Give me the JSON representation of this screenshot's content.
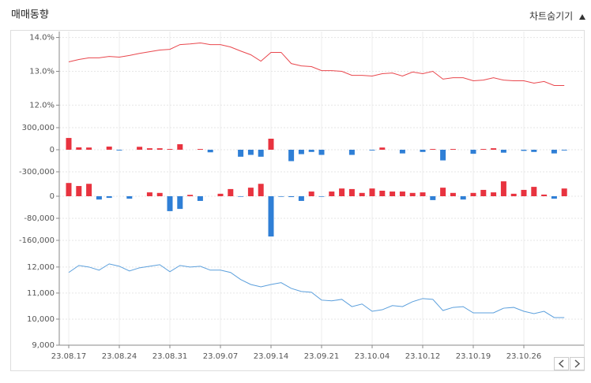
{
  "header": {
    "title": "매매동향",
    "toggle": "차트숨기기"
  },
  "chart_data": [
    {
      "type": "line",
      "color": "#e9474d",
      "values": [
        13.28,
        13.35,
        13.4,
        13.4,
        13.44,
        13.42,
        13.47,
        13.53,
        13.58,
        13.63,
        13.65,
        13.79,
        13.81,
        13.84,
        13.79,
        13.79,
        13.72,
        13.6,
        13.49,
        13.3,
        13.56,
        13.56,
        13.23,
        13.16,
        13.14,
        13.02,
        13.02,
        13.0,
        12.88,
        12.88,
        12.86,
        12.93,
        12.95,
        12.86,
        12.98,
        12.93,
        13.0,
        12.77,
        12.81,
        12.81,
        12.72,
        12.74,
        12.81,
        12.74,
        12.72,
        12.72,
        12.65,
        12.7,
        12.58,
        12.58
      ],
      "ylim": [
        11.8,
        14.2
      ],
      "yticks": [
        {
          "value": 14,
          "label": "14.0%"
        },
        {
          "value": 13,
          "label": "13.0%"
        },
        {
          "value": 12,
          "label": "12.0%"
        }
      ],
      "grid": true
    },
    {
      "type": "bar",
      "color": "#e8333f",
      "negative_color": "#2f7fd6",
      "values": [
        160000,
        32000,
        30000,
        0,
        43000,
        -10000,
        0,
        40000,
        20000,
        20000,
        10000,
        75000,
        0,
        10000,
        -35000,
        0,
        0,
        -95000,
        -70000,
        -95000,
        150000,
        0,
        -155000,
        -60000,
        -30000,
        -70000,
        0,
        0,
        -70000,
        0,
        -10000,
        30000,
        0,
        -50000,
        0,
        -30000,
        10000,
        -145000,
        10000,
        0,
        -55000,
        10000,
        20000,
        -40000,
        0,
        -15000,
        -30000,
        0,
        -50000,
        -10000
      ],
      "ylim": [
        -450000,
        450000
      ],
      "yticks": [
        {
          "value": 300000,
          "label": "300,000"
        },
        0,
        {
          "value": -300000,
          "label": "-300,000"
        }
      ],
      "grid": true
    },
    {
      "type": "bar",
      "color": "#e8333f",
      "negative_color": "#2f7fd6",
      "values": [
        48000,
        37000,
        45000,
        -12000,
        -6000,
        0,
        -9000,
        0,
        14000,
        12000,
        -54000,
        -46000,
        5000,
        -17000,
        0,
        9000,
        26000,
        -2000,
        31000,
        45000,
        -146000,
        -2000,
        -3000,
        -17000,
        17000,
        -2000,
        17000,
        28000,
        26000,
        12000,
        28000,
        20000,
        17000,
        17000,
        12000,
        14000,
        -14000,
        31000,
        12000,
        -12000,
        12000,
        23000,
        14000,
        54000,
        9000,
        23000,
        34000,
        6000,
        -9000,
        28000
      ],
      "ylim": [
        -200000,
        50000
      ],
      "yticks": [
        0,
        {
          "value": -80000,
          "label": "-80,000"
        },
        {
          "value": -160000,
          "label": "-160,000"
        }
      ],
      "grid": true
    },
    {
      "type": "line",
      "color": "#5b9fdc",
      "values": [
        11790,
        12060,
        12000,
        11880,
        12120,
        12030,
        11850,
        11970,
        12030,
        12090,
        11820,
        12060,
        12000,
        12030,
        11880,
        11880,
        11790,
        11520,
        11330,
        11240,
        11330,
        11400,
        11180,
        11060,
        11030,
        10730,
        10700,
        10760,
        10480,
        10580,
        10300,
        10360,
        10520,
        10480,
        10670,
        10790,
        10760,
        10330,
        10450,
        10480,
        10240,
        10240,
        10240,
        10420,
        10450,
        10300,
        10210,
        10300,
        10060,
        10060
      ],
      "ylim": [
        9000,
        12600
      ],
      "yticks": [
        {
          "value": 12000,
          "label": "12,000"
        },
        {
          "value": 11000,
          "label": "11,000"
        },
        {
          "value": 10000,
          "label": "10,000"
        },
        {
          "value": 9000,
          "label": "9,000"
        }
      ],
      "grid": true,
      "categories": [
        "23.08.17",
        null,
        null,
        null,
        null,
        "23.08.24",
        null,
        null,
        null,
        null,
        "23.08.31",
        null,
        null,
        null,
        null,
        "23.09.07",
        null,
        null,
        null,
        null,
        "23.09.14",
        null,
        null,
        null,
        null,
        "23.09.21",
        null,
        null,
        null,
        null,
        "23.10.04",
        null,
        null,
        null,
        null,
        "23.10.12",
        null,
        null,
        null,
        null,
        "23.10.19",
        null,
        null,
        null,
        null,
        "23.10.26",
        null,
        null,
        null,
        null
      ]
    }
  ]
}
